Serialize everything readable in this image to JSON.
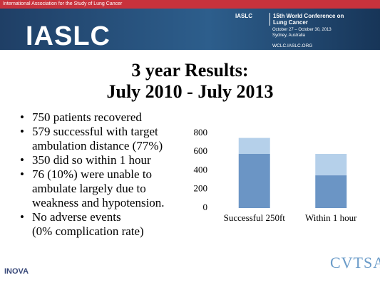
{
  "header": {
    "association": "International Association for the Study of Lung Cancer",
    "logo": "IASLC",
    "org": "IASLC",
    "conference": "15th World Conference on Lung Cancer",
    "dates": "October 27 – October 30, 2013",
    "location": "Sydney, Australia",
    "website": "WCLC.IASLC.ORG"
  },
  "title": [
    "3 year Results:",
    "July 2010 - July 2013"
  ],
  "bullets": [
    [
      "750 patients recovered"
    ],
    [
      "579 successful with target",
      "ambulation distance (77%)"
    ],
    [
      "350 did so within 1 hour"
    ],
    [
      "76 (10%) were unable to",
      "ambulate largely due to",
      "weakness and hypotension."
    ],
    [
      "No adverse events",
      "(0% complication rate)"
    ]
  ],
  "chart_data": {
    "type": "stacked-bar",
    "categories": [
      "Successful 250ft",
      "Within 1 hour"
    ],
    "series": [
      {
        "color": "#6b95c5",
        "values": [
          579,
          350
        ]
      },
      {
        "color": "#b5d0ea",
        "values": [
          171,
          229
        ]
      }
    ],
    "ylim": [
      0,
      800
    ],
    "yticks": [
      0,
      200,
      400,
      600,
      800
    ]
  },
  "footer": {
    "left": "INOVA",
    "right": "CVTSA"
  }
}
